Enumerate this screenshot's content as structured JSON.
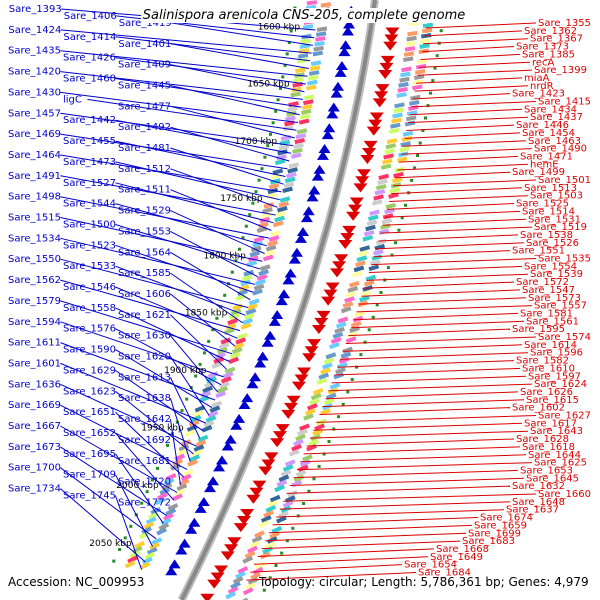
{
  "header": {
    "title": "Salinispora arenicola CNS-205, complete genome"
  },
  "footer": {
    "accession": "Accession: NC_009953",
    "stats": "Topology: circular; Length: 5,786,361 bp; Genes: 4,979"
  },
  "colors": {
    "plus_strand": "#0000cc",
    "minus_strand": "#dd0000",
    "backbone": "#888888",
    "ticks": "#228b22"
  },
  "scale_labels": [
    "1600 kbp",
    "1650 kbp",
    "1700 kbp",
    "1750 kbp",
    "1800 kbp",
    "1850 kbp",
    "1900 kbp",
    "1950 kbp",
    "2000 kbp",
    "2050 kbp"
  ],
  "left_labels": [
    "Sare_1393",
    "Sare_1406",
    "Sare_1419",
    "Sare_1424",
    "Sare_1414",
    "Sare_1401",
    "Sare_1435",
    "Sare_1426",
    "Sare_1409",
    "Sare_1420",
    "Sare_1460",
    "Sare_1445",
    "Sare_1430",
    "ligC",
    "Sare_1477",
    "Sare_1457",
    "Sare_1442",
    "Sare_1492",
    "Sare_1469",
    "Sare_1455",
    "Sare_1481",
    "Sare_1464",
    "Sare_1473",
    "Sare_1512",
    "Sare_1491",
    "Sare_1527",
    "Sare_1511",
    "Sare_1498",
    "Sare_1544",
    "Sare_1529",
    "Sare_1515",
    "Sare_1500",
    "Sare_1553",
    "Sare_1534",
    "Sare_1523",
    "Sare_1564",
    "Sare_1550",
    "Sare_1533",
    "Sare_1585",
    "Sare_1562",
    "Sare_1546",
    "Sare_1606",
    "Sare_1579",
    "Sare_1558",
    "Sare_1621",
    "Sare_1594",
    "Sare_1576",
    "Sare_1630",
    "Sare_1611",
    "Sare_1590",
    "Sare_1620",
    "Sare_1601",
    "Sare_1629",
    "Sare_1613",
    "Sare_1636",
    "Sare_1623",
    "Sare_1638",
    "Sare_1669",
    "Sare_1651",
    "Sare_1642",
    "Sare_1667",
    "Sare_1652",
    "Sare_1692",
    "Sare_1673",
    "Sare_1695",
    "Sare_1681",
    "Sare_1700",
    "Sare_1709",
    "Sare_1720",
    "Sare_1734",
    "Sare_1745",
    "Sare_1772"
  ],
  "right_labels": [
    "Sare_1355",
    "Sare_1362",
    "Sare_1367",
    "Sare_1373",
    "Sare_1385",
    "recA",
    "Sare_1399",
    "miaA",
    "nrdR",
    "Sare_1423",
    "Sare_1415",
    "Sare_1434",
    "Sare_1437",
    "Sare_1446",
    "Sare_1454",
    "Sare_1463",
    "Sare_1490",
    "Sare_1471",
    "hemE",
    "Sare_1499",
    "Sare_1501",
    "Sare_1513",
    "Sare_1503",
    "Sare_1525",
    "Sare_1514",
    "Sare_1531",
    "Sare_1519",
    "Sare_1538",
    "Sare_1526",
    "Sare_1551",
    "Sare_1535",
    "Sare_1554",
    "Sare_1539",
    "Sare_1572",
    "Sare_1547",
    "Sare_1573",
    "Sare_1557",
    "Sare_1581",
    "Sare_1561",
    "Sare_1595",
    "Sare_1574",
    "Sare_1614",
    "Sare_1596",
    "Sare_1582",
    "Sare_1610",
    "Sare_1597",
    "Sare_1624",
    "Sare_1626",
    "Sare_1615",
    "Sare_1602",
    "Sare_1627",
    "Sare_1617",
    "Sare_1643",
    "Sare_1628",
    "Sare_1618",
    "Sare_1644",
    "Sare_1625",
    "Sare_1653",
    "Sare_1645",
    "Sare_1632",
    "Sare_1660",
    "Sare_1648",
    "Sare_1637",
    "Sare_1674",
    "Sare_1659",
    "Sare_1699",
    "Sare_1683",
    "Sare_1668",
    "Sare_1649",
    "Sare_1654",
    "Sare_1684"
  ]
}
